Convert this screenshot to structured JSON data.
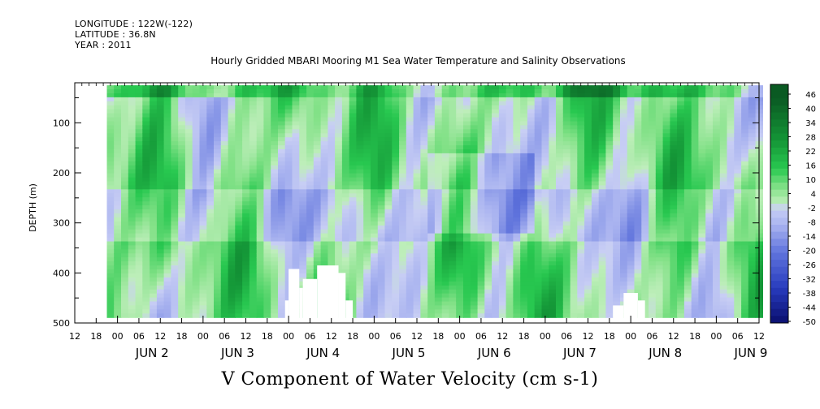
{
  "header": {
    "longitude": "LONGITUDE : 122W(-122)",
    "latitude": "LATITUDE : 36.8N",
    "year": "YEAR : 2011"
  },
  "chart_data": {
    "type": "heatmap",
    "title": "Hourly Gridded MBARI Mooring M1 Sea Water Temperature and Salinity Observations",
    "xlabel": "V Component of Water Velocity (cm s-1)",
    "ylabel": "DEPTH (m)",
    "y_ticks": [
      100,
      200,
      300,
      400,
      500
    ],
    "ylim": [
      500,
      20
    ],
    "x_hour_ticks": [
      "12",
      "18",
      "00",
      "06",
      "12",
      "18",
      "00",
      "06",
      "12",
      "18",
      "00",
      "06",
      "12",
      "18",
      "00",
      "06",
      "12",
      "18",
      "00",
      "06",
      "12",
      "18",
      "00",
      "06",
      "12",
      "18",
      "00",
      "06",
      "12",
      "18",
      "00",
      "06",
      "12"
    ],
    "date_labels": [
      "JUN  2",
      "JUN  3",
      "JUN  4",
      "JUN  5",
      "JUN  6",
      "JUN  7",
      "JUN  8",
      "JUN  9"
    ],
    "xlim_hours_since_jun1_00": [
      12,
      204
    ],
    "data_start_hour": 21,
    "colorbar": {
      "labels": [
        "46",
        "40",
        "34",
        "28",
        "22",
        "16",
        "10",
        "4",
        "-2",
        "-8",
        "-14",
        "-20",
        "-26",
        "-32",
        "-38",
        "-44",
        "-50"
      ],
      "range": [
        -50,
        52
      ]
    }
  },
  "colors": {
    "positive_strong": "#0e6b2e",
    "positive_mid": "#1fc24b",
    "positive_light": "#a9eba7",
    "negative_light": "#b7c0f0",
    "negative_mid": "#6a7fe0",
    "negative_strong": "#2b3fc0",
    "negative_deep": "#0a0e6e"
  }
}
